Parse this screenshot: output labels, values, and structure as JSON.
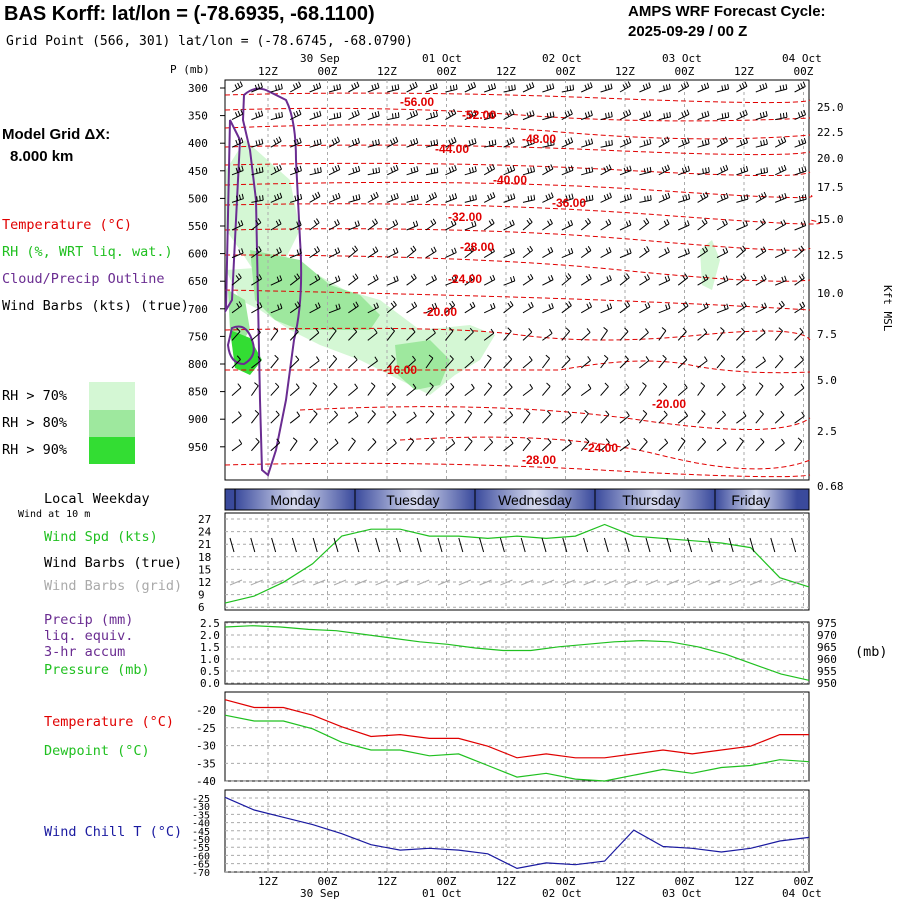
{
  "header": {
    "title": "BAS Korff:  lat/lon = (-78.6935, -68.1100)",
    "subtitle": "Grid Point (566, 301) lat/lon = (-78.6745, -68.0790)",
    "cycle_line1": "AMPS WRF Forecast Cycle:",
    "cycle_line2": "2025-09-29 / 00  Z"
  },
  "model": {
    "line1": "Model Grid ΔX:",
    "line2": "8.000 km"
  },
  "legend": {
    "temperature": "Temperature (°C)",
    "rh": "RH (%, WRT liq. wat.)",
    "cloud": "Cloud/Precip Outline",
    "barbs": "Wind Barbs (kts) (true)",
    "rh70": "RH > 70%",
    "rh80": "RH > 80%",
    "rh90": "RH > 90%",
    "local_weekday": "Local Weekday",
    "wind_at": "Wind at 10 m",
    "wind_spd": "Wind Spd (kts)",
    "wind_barbs_true": "Wind Barbs (true)",
    "wind_barbs_grid": "Wind Barbs (grid)",
    "precip1": "Precip (mm)",
    "precip2": "liq. equiv.",
    "precip3": "3-hr accum",
    "pressure": "Pressure (mb)",
    "pressure_unit": "(mb)",
    "temp2": "Temperature (°C)",
    "dewpoint": "Dewpoint (°C)",
    "windchill": "Wind Chill T (°C)"
  },
  "colors": {
    "red": "#e00000",
    "green": "#20c020",
    "purple": "#6a2c91",
    "blue": "#1a1aa0",
    "rh70": "#d4f7d4",
    "rh80": "#9ee89e",
    "rh90": "#33dd33",
    "grey": "#aaaaaa",
    "daybar_dark": "#3a4a9c",
    "daybar_light": "#d8dcf0"
  },
  "chart_data": [
    {
      "type": "line",
      "name": "cross-section",
      "ylabel": "P (mb)",
      "y_ticks": [
        "300",
        "350",
        "400",
        "450",
        "500",
        "550",
        "600",
        "650",
        "700",
        "750",
        "800",
        "850",
        "900",
        "950"
      ],
      "right_label": "Kft MSL",
      "right_ticks": [
        "25.0",
        "22.5",
        "20.0",
        "17.5",
        "15.0",
        "12.5",
        "10.0",
        "7.5",
        "5.0",
        "2.5",
        "0.68"
      ],
      "top_time_ticks": [
        "12Z",
        "00Z",
        "12Z",
        "00Z",
        "12Z",
        "00Z",
        "12Z",
        "00Z",
        "12Z",
        "00Z"
      ],
      "top_date_ticks": [
        "30 Sep",
        "01 Oct",
        "02 Oct",
        "03 Oct",
        "04 Oct"
      ],
      "isotherm_labels": [
        "-56.00",
        "-52.00",
        "-48.00",
        "-44.00",
        "-40.00",
        "-36.00",
        "-32.00",
        "-28.00",
        "-24.00",
        "-20.00",
        "-16.00",
        "-20.00",
        "-24.00",
        "-28.00"
      ]
    },
    {
      "type": "bar",
      "name": "weekday",
      "categories": [
        "Monday",
        "Tuesday",
        "Wednesday",
        "Thursday",
        "Friday"
      ]
    },
    {
      "type": "line",
      "name": "wind speed",
      "y_ticks": [
        "27",
        "24",
        "21",
        "18",
        "15",
        "12",
        "9",
        "6"
      ],
      "ylim": [
        6,
        27
      ],
      "x": [
        0,
        6,
        12,
        18,
        24,
        30,
        36,
        42,
        48,
        54,
        60,
        66,
        72,
        78,
        84,
        90,
        96,
        102,
        108,
        114,
        120
      ],
      "series": [
        {
          "name": "Wind Spd (kts)",
          "values": [
            7.5,
            9,
            12,
            16,
            22,
            23.5,
            23.5,
            22,
            22,
            21.5,
            22,
            21.5,
            22,
            24.5,
            22,
            21.5,
            21,
            20.5,
            19.5,
            13,
            11
          ]
        }
      ]
    },
    {
      "type": "line",
      "name": "pressure",
      "y_ticks_left": [
        "2.5",
        "2.0",
        "1.5",
        "1.0",
        "0.5",
        "0.0"
      ],
      "y_ticks_right": [
        "975",
        "970",
        "965",
        "960",
        "955",
        "950"
      ],
      "ylim": [
        950,
        975
      ],
      "series": [
        {
          "name": "Pressure (mb)",
          "values": [
            973,
            973.5,
            973,
            972,
            971.5,
            970,
            968.5,
            967,
            966,
            964.5,
            963.5,
            963.5,
            965,
            966,
            967,
            967.5,
            967,
            965,
            962,
            958,
            954,
            951.5
          ]
        }
      ]
    },
    {
      "type": "line",
      "name": "temperature",
      "y_ticks": [
        "-20",
        "-25",
        "-30",
        "-35",
        "-40"
      ],
      "ylim": [
        -40,
        -17
      ],
      "series": [
        {
          "name": "Temperature (°C)",
          "values": [
            -19,
            -21,
            -21,
            -23,
            -26,
            -28.5,
            -28,
            -29,
            -29,
            -31,
            -34,
            -33,
            -34,
            -34,
            -33,
            -32,
            -33,
            -32,
            -31,
            -28,
            -28
          ]
        },
        {
          "name": "Dewpoint (°C)",
          "values": [
            -23,
            -24.5,
            -24.5,
            -26.5,
            -30,
            -32,
            -32,
            -33.5,
            -33,
            -36,
            -39,
            -38,
            -39.5,
            -40,
            -38.5,
            -37,
            -38,
            -36.5,
            -36,
            -34.5,
            -35
          ]
        }
      ]
    },
    {
      "type": "line",
      "name": "wind chill",
      "y_ticks": [
        "-25",
        "-30",
        "-35",
        "-40",
        "-45",
        "-50",
        "-55",
        "-60",
        "-65",
        "-70"
      ],
      "ylim": [
        -70,
        -25
      ],
      "bottom_time_ticks": [
        "12Z",
        "00Z",
        "12Z",
        "00Z",
        "12Z",
        "00Z",
        "12Z",
        "00Z",
        "12Z",
        "00Z"
      ],
      "bottom_date_ticks": [
        "30 Sep",
        "01 Oct",
        "02 Oct",
        "03 Oct",
        "04 Oct"
      ],
      "series": [
        {
          "name": "Wind Chill T (°C)",
          "values": [
            -29,
            -36,
            -40,
            -44,
            -49,
            -55,
            -58,
            -57,
            -58,
            -60,
            -68,
            -65,
            -66,
            -64,
            -47,
            -56,
            -57,
            -59,
            -57,
            -53,
            -51
          ]
        }
      ]
    }
  ]
}
